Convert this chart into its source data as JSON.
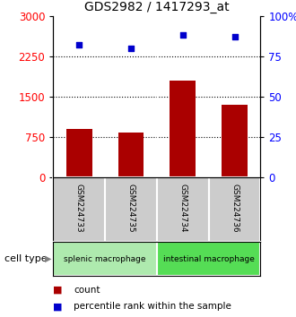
{
  "title": "GDS2982 / 1417293_at",
  "samples": [
    "GSM224733",
    "GSM224735",
    "GSM224734",
    "GSM224736"
  ],
  "bar_values": [
    900,
    820,
    1800,
    1350
  ],
  "scatter_values": [
    82,
    80,
    88,
    87
  ],
  "left_ylim": [
    0,
    3000
  ],
  "right_ylim": [
    0,
    100
  ],
  "left_yticks": [
    0,
    750,
    1500,
    2250,
    3000
  ],
  "right_yticks": [
    0,
    25,
    50,
    75,
    100
  ],
  "right_yticklabels": [
    "0",
    "25",
    "50",
    "75",
    "100%"
  ],
  "bar_color": "#aa0000",
  "scatter_color": "#0000cc",
  "dotted_lines": [
    750,
    1500,
    2250
  ],
  "cell_types": [
    "splenic macrophage",
    "intestinal macrophage"
  ],
  "cell_type_colors": [
    "#aeeaae",
    "#55dd55"
  ],
  "cell_type_ranges": [
    [
      0,
      2
    ],
    [
      2,
      4
    ]
  ],
  "group_bg_color": "#cccccc",
  "legend_items": [
    {
      "color": "#aa0000",
      "label": "count"
    },
    {
      "color": "#0000cc",
      "label": "percentile rank within the sample"
    }
  ],
  "cell_type_label": "cell type",
  "title_fontsize": 10,
  "tick_fontsize": 8.5,
  "bar_width": 0.5
}
